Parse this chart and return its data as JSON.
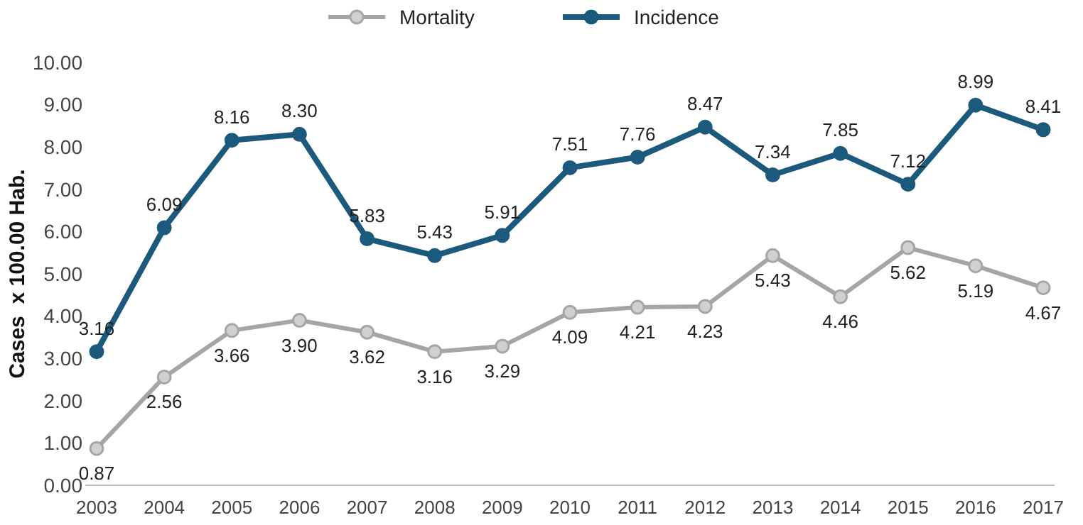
{
  "chart_data": {
    "type": "line",
    "ylabel": "Cases  x 100.00 Hab.",
    "categories": [
      "2003",
      "2004",
      "2005",
      "2006",
      "2007",
      "2008",
      "2009",
      "2010",
      "2011",
      "2012",
      "2013",
      "2014",
      "2015",
      "2016",
      "2017"
    ],
    "ylim": [
      0,
      10
    ],
    "yticks": [
      {
        "value": 0,
        "label": "0.00"
      },
      {
        "value": 1,
        "label": "1.00"
      },
      {
        "value": 2,
        "label": "2.00"
      },
      {
        "value": 3,
        "label": "3.00"
      },
      {
        "value": 4,
        "label": "4.00"
      },
      {
        "value": 5,
        "label": "5.00"
      },
      {
        "value": 6,
        "label": "6.00"
      },
      {
        "value": 7,
        "label": "7.00"
      },
      {
        "value": 8,
        "label": "8.00"
      },
      {
        "value": 9,
        "label": "9.00"
      },
      {
        "value": 10,
        "label": "10.00"
      }
    ],
    "grid": false,
    "legend": "top",
    "marker": "circle",
    "line_style": "solid",
    "series": [
      {
        "name": "Mortality",
        "color": "#a5a5a5",
        "values": [
          0.87,
          2.56,
          3.66,
          3.9,
          3.62,
          3.16,
          3.29,
          4.09,
          4.21,
          4.23,
          5.43,
          4.46,
          5.62,
          5.19,
          4.67
        ],
        "value_labels": [
          "0.87",
          "2.56",
          "3.66",
          "3.90",
          "3.62",
          "3.16",
          "3.29",
          "4.09",
          "4.21",
          "4.23",
          "5.43",
          "4.46",
          "5.62",
          "5.19",
          "4.67"
        ]
      },
      {
        "name": "Incidence",
        "color": "#1c5a7d",
        "values": [
          3.16,
          6.09,
          8.16,
          8.3,
          5.83,
          5.43,
          5.91,
          7.51,
          7.76,
          8.47,
          7.34,
          7.85,
          7.12,
          8.99,
          8.41
        ],
        "value_labels": [
          "3.16",
          "6.09",
          "8.16",
          "8.30",
          "5.83",
          "5.43",
          "5.91",
          "7.51",
          "7.76",
          "8.47",
          "7.34",
          "7.85",
          "7.12",
          "8.99",
          "8.41"
        ]
      }
    ]
  }
}
